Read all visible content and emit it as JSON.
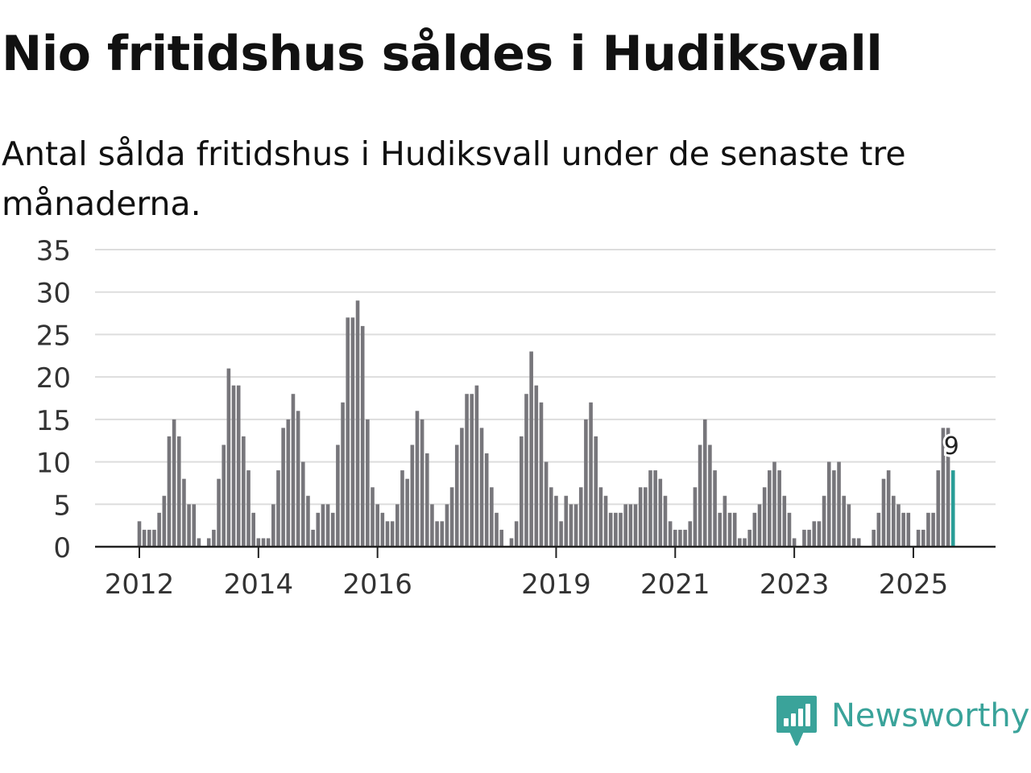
{
  "header": {
    "title": "Nio fritidshus såldes i Hudiksvall",
    "subtitle": "Antal sålda fritidshus i Hudiksvall under de senaste tre månaderna."
  },
  "logo": {
    "text": "Newsworthy",
    "color": "#3aa39a"
  },
  "chart_data": {
    "type": "bar",
    "title": "Nio fritidshus såldes i Hudiksvall",
    "xlabel": "",
    "ylabel": "",
    "ylim": [
      0,
      35
    ],
    "yticks": [
      "0",
      "5",
      "10",
      "15",
      "20",
      "25",
      "30",
      "35"
    ],
    "xticks": [
      {
        "label": "2012",
        "index": 0
      },
      {
        "label": "2014",
        "index": 24
      },
      {
        "label": "2016",
        "index": 48
      },
      {
        "label": "2019",
        "index": 84
      },
      {
        "label": "2021",
        "index": 108
      },
      {
        "label": "2023",
        "index": 132
      },
      {
        "label": "2025",
        "index": 156
      }
    ],
    "start": "2012-01",
    "values": [
      3,
      2,
      2,
      2,
      4,
      6,
      13,
      15,
      13,
      8,
      5,
      5,
      1,
      0,
      1,
      2,
      8,
      12,
      21,
      19,
      19,
      13,
      9,
      4,
      1,
      1,
      1,
      5,
      9,
      14,
      15,
      18,
      16,
      10,
      6,
      2,
      4,
      5,
      5,
      4,
      12,
      17,
      27,
      27,
      29,
      26,
      15,
      7,
      5,
      4,
      3,
      3,
      5,
      9,
      8,
      12,
      16,
      15,
      11,
      5,
      3,
      3,
      5,
      7,
      12,
      14,
      18,
      18,
      19,
      14,
      11,
      7,
      4,
      2,
      0,
      1,
      3,
      13,
      18,
      23,
      19,
      17,
      10,
      7,
      6,
      3,
      6,
      5,
      5,
      7,
      15,
      17,
      13,
      7,
      6,
      4,
      4,
      4,
      5,
      5,
      5,
      7,
      7,
      9,
      9,
      8,
      6,
      3,
      2,
      2,
      2,
      3,
      7,
      12,
      15,
      12,
      9,
      4,
      6,
      4,
      4,
      1,
      1,
      2,
      4,
      5,
      7,
      9,
      10,
      9,
      6,
      4,
      1,
      0,
      2,
      2,
      3,
      3,
      6,
      10,
      9,
      10,
      6,
      5,
      1,
      1,
      0,
      0,
      2,
      4,
      8,
      9,
      6,
      5,
      4,
      4,
      0,
      2,
      2,
      4,
      4,
      9,
      14,
      14,
      9
    ],
    "bar_color": "#77767b",
    "highlight_color": "#2a9d97",
    "highlight_index": 164,
    "highlight_label": "9"
  }
}
